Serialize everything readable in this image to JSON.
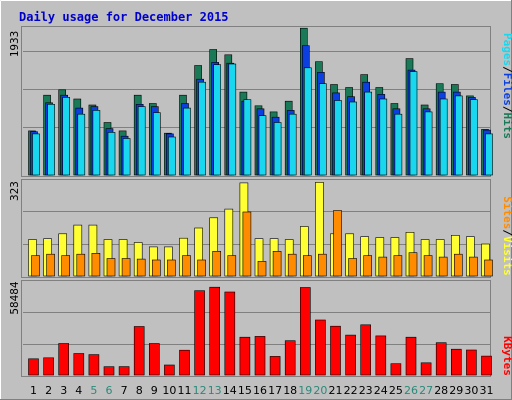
{
  "title": "Daily usage for December 2015",
  "colors": {
    "background": "#c0c0c0",
    "title": "#0000cc",
    "hits": "#1a7a57",
    "files": "#0b3fe0",
    "pages": "#19d7ee",
    "visits": "#ffff33",
    "sites": "#ff8c00",
    "kbytes": "#ff0000",
    "weekend_label": "#2a8a7a",
    "weekday_label": "#000000"
  },
  "chart_data": [
    {
      "type": "bar",
      "panel": "top",
      "y_max_label": "1933",
      "ymax": 1933,
      "right_labels": [
        "Pages",
        "Files",
        "Hits"
      ],
      "categories": [
        "1",
        "2",
        "3",
        "4",
        "5",
        "6",
        "7",
        "8",
        "9",
        "10",
        "11",
        "12",
        "13",
        "14",
        "15",
        "16",
        "17",
        "18",
        "19",
        "20",
        "21",
        "22",
        "23",
        "24",
        "25",
        "26",
        "27",
        "28",
        "29",
        "30",
        "31"
      ],
      "weekend_days": [
        "5",
        "6",
        "12",
        "13",
        "19",
        "20",
        "26",
        "27"
      ],
      "series": [
        {
          "name": "Hits",
          "values": [
            580,
            1050,
            1120,
            1000,
            920,
            690,
            580,
            1050,
            940,
            550,
            1050,
            1440,
            1650,
            1580,
            1090,
            910,
            830,
            970,
            1930,
            1490,
            1190,
            1150,
            1320,
            1150,
            940,
            1530,
            920,
            1200,
            1190,
            1040,
            600
          ]
        },
        {
          "name": "Files",
          "values": [
            570,
            950,
            1050,
            880,
            900,
            610,
            510,
            930,
            900,
            540,
            940,
            1260,
            1480,
            1470,
            970,
            870,
            760,
            850,
            1700,
            1350,
            1080,
            1030,
            1220,
            1060,
            870,
            1380,
            870,
            1090,
            1090,
            1020,
            590
          ]
        },
        {
          "name": "Pages",
          "values": [
            540,
            930,
            1020,
            800,
            850,
            560,
            480,
            900,
            820,
            500,
            880,
            1220,
            1450,
            1460,
            990,
            780,
            690,
            800,
            1410,
            1200,
            980,
            960,
            1090,
            1000,
            800,
            1360,
            830,
            1000,
            1040,
            990,
            540
          ]
        }
      ]
    },
    {
      "type": "bar",
      "panel": "middle",
      "y_max_label": "323",
      "ymax": 323,
      "right_labels": [
        "Sites",
        "Visits"
      ],
      "series": [
        {
          "name": "Visits",
          "values": [
            125,
            128,
            145,
            175,
            175,
            125,
            125,
            115,
            100,
            100,
            130,
            165,
            200,
            230,
            320,
            128,
            128,
            125,
            170,
            322,
            145,
            145,
            135,
            132,
            132,
            150,
            125,
            125,
            140,
            135,
            110
          ]
        },
        {
          "name": "Sites",
          "values": [
            70,
            75,
            70,
            75,
            78,
            60,
            60,
            58,
            55,
            55,
            70,
            55,
            85,
            70,
            220,
            50,
            85,
            75,
            70,
            75,
            225,
            60,
            70,
            65,
            70,
            80,
            70,
            65,
            75,
            65,
            55
          ]
        }
      ]
    },
    {
      "type": "bar",
      "panel": "bottom",
      "y_max_label": "58484",
      "ymax": 58484,
      "right_labels": [
        "KBytes"
      ],
      "series": [
        {
          "name": "KBytes",
          "values": [
            10200,
            10800,
            19800,
            13500,
            12800,
            5200,
            5300,
            30500,
            19800,
            6300,
            15600,
            53000,
            55200,
            52200,
            23800,
            24300,
            11700,
            21600,
            55000,
            34600,
            30700,
            25100,
            31600,
            24600,
            7100,
            23800,
            7700,
            20300,
            16200,
            15700,
            11900
          ]
        }
      ]
    }
  ]
}
